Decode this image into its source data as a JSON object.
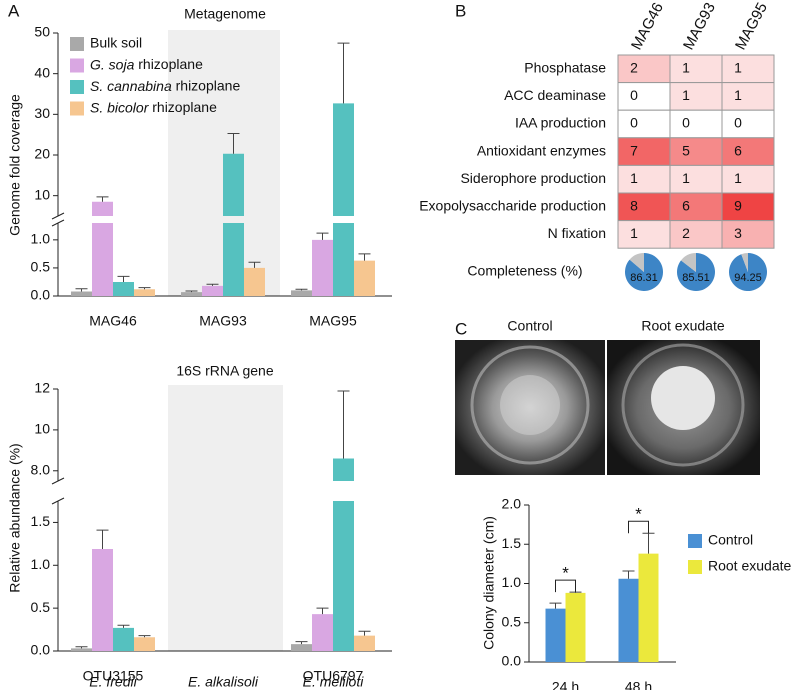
{
  "panel_labels": [
    "A",
    "B",
    "C"
  ],
  "chart_data": [
    {
      "type": "bar",
      "title": "Metagenome",
      "y_label": "Genome fold coverage",
      "categories": [
        "MAG46",
        "MAG93",
        "MAG95"
      ],
      "series": [
        {
          "name": "Bulk soil",
          "color": "#a9a9a9",
          "values": [
            0.08,
            0.07,
            0.1
          ],
          "errors": [
            0.05,
            0.02,
            0.02
          ]
        },
        {
          "name": "G. soja rhizoplane",
          "color": "#d9a7e2",
          "values": [
            8.5,
            0.18,
            1.0
          ],
          "errors": [
            1.2,
            0.03,
            0.12
          ]
        },
        {
          "name": "S. cannabina rhizoplane",
          "color": "#55c1bf",
          "values": [
            0.25,
            20.3,
            32.7
          ],
          "errors": [
            0.1,
            5.0,
            14.8
          ]
        },
        {
          "name": "S. bicolor rhizoplane",
          "color": "#f6c690",
          "values": [
            0.12,
            0.5,
            0.63
          ],
          "errors": [
            0.03,
            0.1,
            0.12
          ]
        }
      ],
      "ylim": [
        [
          0,
          1.3
        ],
        [
          5,
          50
        ]
      ],
      "yticks": [
        {
          "value": 0,
          "label": "0.0"
        },
        {
          "value": 0.5,
          "label": "0.5"
        },
        {
          "value": 1,
          "label": "1.0"
        },
        10,
        20,
        30,
        40,
        50
      ],
      "legend": "upper left"
    },
    {
      "type": "bar",
      "title": "16S rRNA gene",
      "y_label": "Relative abundance (%)",
      "categories": [
        "OTU3155",
        null,
        "OTU6797"
      ],
      "species": [
        "E. fredii",
        "E. alkalisoli",
        "E. meliloti"
      ],
      "series": [
        {
          "color": "#a9a9a9",
          "values": [
            0.03,
            null,
            0.08
          ],
          "errors": [
            0.02,
            null,
            0.03
          ]
        },
        {
          "color": "#d9a7e2",
          "values": [
            1.19,
            null,
            0.43
          ],
          "errors": [
            0.22,
            null,
            0.07
          ]
        },
        {
          "color": "#55c1bf",
          "values": [
            0.27,
            null,
            8.6
          ],
          "errors": [
            0.03,
            null,
            3.3
          ]
        },
        {
          "color": "#f6c690",
          "values": [
            0.16,
            null,
            0.18
          ],
          "errors": [
            0.02,
            null,
            0.05
          ]
        }
      ],
      "ylim": [
        [
          0,
          1.75
        ],
        [
          7.5,
          12
        ]
      ],
      "yticks": [
        {
          "value": 0,
          "label": "0.0"
        },
        {
          "value": 0.5,
          "label": "0.5"
        },
        {
          "value": 1,
          "label": "1.0"
        },
        {
          "value": 1.5,
          "label": "1.5"
        },
        {
          "value": 8,
          "label": "8.0"
        },
        10,
        12
      ]
    },
    {
      "type": "heatmap",
      "columns": [
        "MAG46",
        "MAG93",
        "MAG95"
      ],
      "rows": [
        "Phosphatase",
        "ACC deaminase",
        "IAA production",
        "Antioxidant enzymes",
        "Siderophore production",
        "Exopolysaccharide production",
        "N fixation"
      ],
      "values": [
        [
          2,
          1,
          1
        ],
        [
          0,
          1,
          1
        ],
        [
          0,
          0,
          0
        ],
        [
          7,
          5,
          6
        ],
        [
          1,
          1,
          1
        ],
        [
          8,
          6,
          9
        ],
        [
          1,
          2,
          3
        ]
      ],
      "colors": [
        "#ffffff",
        "#ef4444"
      ],
      "completeness": {
        "label": "Completeness (%)",
        "values": [
          86.31,
          85.51,
          94.25
        ],
        "colors": [
          "#3d85c6",
          "#c4c4c4"
        ]
      }
    },
    {
      "type": "bar",
      "y_label": "Colony diameter (cm)",
      "image_labels": [
        "Control",
        "Root exudate"
      ],
      "categories": [
        "24 h",
        "48 h"
      ],
      "series": [
        {
          "name": "Control",
          "color": "#4a90d4",
          "values": [
            0.68,
            1.06
          ],
          "errors": [
            0.07,
            0.1
          ]
        },
        {
          "name": "Root exudate",
          "color": "#ebe83c",
          "values": [
            0.88,
            1.38
          ],
          "errors": [
            0.01,
            0.26
          ]
        }
      ],
      "ylim": [
        0,
        2
      ],
      "yticks": [
        {
          "value": 0,
          "label": "0.0"
        },
        {
          "value": 0.5,
          "label": "0.5"
        },
        {
          "value": 1,
          "label": "1.0"
        },
        {
          "value": 1.5,
          "label": "1.5"
        },
        {
          "value": 2,
          "label": "2.0"
        }
      ],
      "annotations": [
        "*",
        "*"
      ],
      "legend": "right"
    }
  ]
}
